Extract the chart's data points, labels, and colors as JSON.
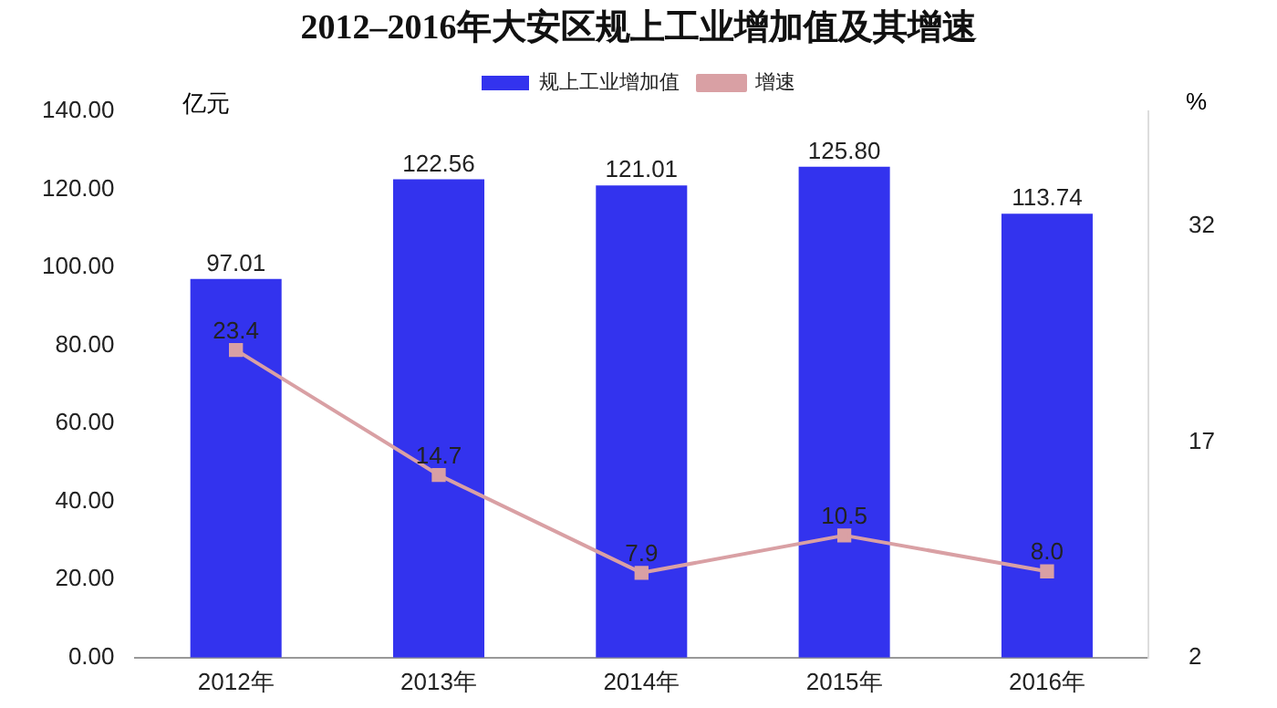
{
  "chart_data": {
    "type": "bar",
    "title": "2012–2016年大安区规上工业增加值及其增速",
    "ylabel": "亿元",
    "y2label": "%",
    "categories": [
      "2012年",
      "2013年",
      "2014年",
      "2015年",
      "2016年"
    ],
    "series": [
      {
        "name": "规上工业增加值",
        "color": "#3333ee",
        "values": [
          97.01,
          122.56,
          121.01,
          125.8,
          113.74
        ],
        "value_labels": [
          "97.01",
          "122.56",
          "121.01",
          "125.80",
          "113.74"
        ]
      },
      {
        "name": "增速",
        "type": "line",
        "axis": "y2",
        "color": "#d9a0a4",
        "values": [
          23.4,
          14.7,
          7.9,
          10.5,
          8.0
        ],
        "value_labels": [
          "23.4",
          "14.7",
          "7.9",
          "10.5",
          "8.0"
        ]
      }
    ],
    "ylim": [
      0,
      140
    ],
    "yticks": [
      {
        "value": 0,
        "label": "0.00"
      },
      {
        "value": 20,
        "label": "20.00"
      },
      {
        "value": 40,
        "label": "40.00"
      },
      {
        "value": 60,
        "label": "60.00"
      },
      {
        "value": 80,
        "label": "80.00"
      },
      {
        "value": 100,
        "label": "100.00"
      },
      {
        "value": 120,
        "label": "120.00"
      },
      {
        "value": 140,
        "label": "140.00"
      }
    ],
    "y2lim": [
      2,
      40
    ],
    "y2ticks": [
      2,
      17,
      32
    ],
    "marker": "square",
    "legend": "top",
    "grid": false
  }
}
